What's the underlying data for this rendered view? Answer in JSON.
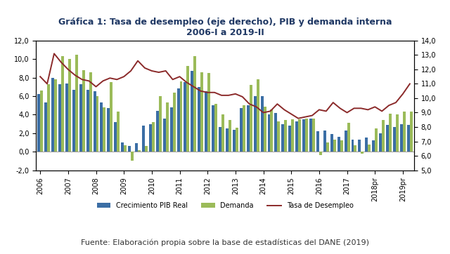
{
  "chart_data": {
    "type": "bar",
    "title": "Gráfica 1: Tasa de desempleo (eje derecho), PIB y demanda interna\n2006-I a 2019-II",
    "source": "Fuente: Elaboración propia sobre la base de estadísticas del DANE (2019)",
    "categories": [
      "2006",
      null,
      null,
      null,
      "2007",
      null,
      null,
      null,
      "2008",
      null,
      null,
      null,
      "2009",
      null,
      null,
      null,
      "2010",
      null,
      null,
      null,
      "2011",
      null,
      null,
      null,
      "2012",
      null,
      null,
      null,
      "2013",
      null,
      null,
      null,
      "2014",
      null,
      null,
      null,
      "2015",
      null,
      null,
      null,
      "2016",
      null,
      null,
      null,
      "2017",
      null,
      null,
      null,
      "2018pr",
      null,
      null,
      null,
      "2019pr",
      null
    ],
    "series": [
      {
        "name": "Crecimiento PIB Real",
        "type": "bar",
        "color": "#3b6ea5",
        "values": [
          6.2,
          5.3,
          8.0,
          7.3,
          7.4,
          6.7,
          7.3,
          6.7,
          6.5,
          5.3,
          4.7,
          3.2,
          1.0,
          0.6,
          0.9,
          2.8,
          3.0,
          4.4,
          3.6,
          4.8,
          6.8,
          7.5,
          8.7,
          7.0,
          6.5,
          5.0,
          2.7,
          2.5,
          2.4,
          4.7,
          5.0,
          6.0,
          6.0,
          4.0,
          4.2,
          3.0,
          2.8,
          3.3,
          3.5,
          3.6,
          2.2,
          2.3,
          1.9,
          1.6,
          2.3,
          1.3,
          1.3,
          1.5,
          1.2,
          2.0,
          2.9,
          2.7,
          3.0,
          2.9
        ]
      },
      {
        "name": "Demanda",
        "type": "bar",
        "color": "#9bbb59",
        "values": [
          6.6,
          7.3,
          7.8,
          10.3,
          10.0,
          10.5,
          8.8,
          8.6,
          6.0,
          4.8,
          7.5,
          4.3,
          0.7,
          -1.0,
          0.2,
          0.6,
          3.2,
          6.0,
          5.3,
          6.4,
          7.6,
          9.3,
          10.3,
          8.6,
          8.5,
          5.2,
          4.0,
          3.4,
          2.6,
          5.0,
          7.2,
          7.8,
          4.9,
          4.6,
          3.3,
          3.4,
          3.5,
          3.5,
          3.6,
          3.6,
          -0.4,
          1.0,
          1.3,
          1.2,
          3.1,
          0.7,
          -0.2,
          0.8,
          2.5,
          3.4,
          4.1,
          4.0,
          4.3,
          4.3
        ]
      },
      {
        "name": "Tasa de Desempleo",
        "type": "line",
        "axis": "y2",
        "color": "#8b2a2a",
        "values": [
          11.5,
          11.0,
          13.1,
          12.5,
          12.0,
          11.6,
          11.3,
          11.2,
          10.8,
          11.2,
          11.4,
          11.3,
          11.5,
          11.9,
          12.6,
          12.1,
          11.9,
          11.8,
          11.9,
          11.3,
          11.5,
          11.1,
          10.8,
          10.5,
          10.4,
          10.4,
          10.2,
          10.2,
          10.3,
          10.1,
          9.6,
          9.4,
          9.0,
          9.1,
          9.6,
          9.2,
          8.9,
          8.6,
          8.7,
          8.8,
          9.2,
          9.1,
          9.7,
          9.3,
          9.0,
          9.3,
          9.3,
          9.2,
          9.4,
          9.1,
          9.5,
          9.7,
          10.3,
          11.0
        ]
      }
    ],
    "ylim": [
      -2,
      12
    ],
    "yticks": [
      {
        "value": -2,
        "label": "-2,0"
      },
      {
        "value": 0,
        "label": "0,0"
      },
      {
        "value": 2,
        "label": "2,0"
      },
      {
        "value": 4,
        "label": "4,0"
      },
      {
        "value": 6,
        "label": "6,0"
      },
      {
        "value": 8,
        "label": "8,0"
      },
      {
        "value": 10,
        "label": "10,0"
      },
      {
        "value": 12,
        "label": "12,0"
      }
    ],
    "y2lim": [
      5,
      14
    ],
    "y2ticks": [
      {
        "value": 5,
        "label": "5,0"
      },
      {
        "value": 6,
        "label": "6,0"
      },
      {
        "value": 7,
        "label": "7,0"
      },
      {
        "value": 8,
        "label": "8,0"
      },
      {
        "value": 9,
        "label": "9,0"
      },
      {
        "value": 10,
        "label": "10,0"
      },
      {
        "value": 11,
        "label": "11,0"
      },
      {
        "value": 12,
        "label": "12,0"
      },
      {
        "value": 13,
        "label": "13,0"
      },
      {
        "value": 14,
        "label": "14,0"
      }
    ],
    "grid": false,
    "legend": "bottom"
  }
}
